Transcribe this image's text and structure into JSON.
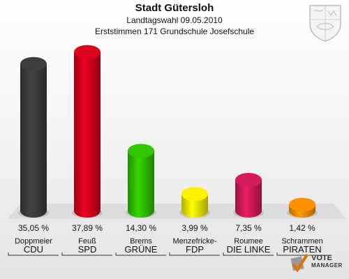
{
  "header": {
    "title": "Stadt Gütersloh",
    "subtitle": "Landtagswahl 09.05.2010",
    "subtitle2": "Erststimmen 171 Grundschule Josefschule"
  },
  "logo": {
    "line1": "VOTE",
    "line2": "MANAGER"
  },
  "chart_data": {
    "type": "bar",
    "title": "Stadt Gütersloh",
    "categories": [
      "CDU",
      "SPD",
      "GRÜNE",
      "FDP",
      "DIE LINKE",
      "PIRATEN"
    ],
    "candidates": [
      "Doppmeier",
      "Feuß",
      "Brems",
      "Menzefricke-",
      "Roumee",
      "Schrammen"
    ],
    "values": [
      35.05,
      37.89,
      14.3,
      3.99,
      7.35,
      1.42
    ],
    "value_labels": [
      "35,05 %",
      "37,89 %",
      "14,30 %",
      "3,99 %",
      "7,35 %",
      "1,42 %"
    ],
    "colors": [
      "#3a3a3a",
      "#d0021b",
      "#2ebd00",
      "#f2e600",
      "#cc1a55",
      "#f28a00"
    ],
    "ylim": [
      0,
      40
    ],
    "grid": false
  }
}
